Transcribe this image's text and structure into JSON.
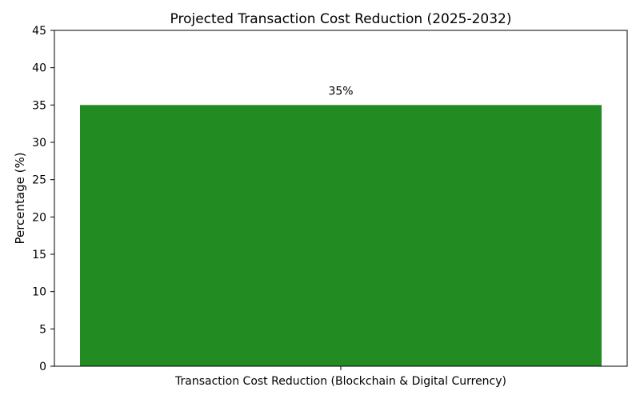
{
  "chart_data": {
    "type": "bar",
    "title": "Projected Transaction Cost Reduction (2025-2032)",
    "xlabel": "",
    "ylabel": "Percentage (%)",
    "categories": [
      "Transaction Cost Reduction (Blockchain & Digital Currency)"
    ],
    "values": [
      35
    ],
    "data_labels": [
      "35%"
    ],
    "ylim": [
      0,
      45
    ],
    "yticks": [
      0,
      5,
      10,
      15,
      20,
      25,
      30,
      35,
      40,
      45
    ],
    "grid": false,
    "legend": "none",
    "colors": {
      "bar": "#228b22",
      "axis": "#000000",
      "text": "#000000"
    }
  }
}
